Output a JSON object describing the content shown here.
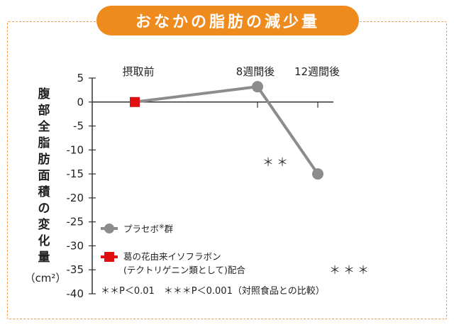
{
  "title": "おなかの脂肪の減少量",
  "chart_data": {
    "type": "line",
    "categories": [
      "摂取前",
      "8週間後",
      "12週間後"
    ],
    "ylabel": "腹部全脂肪面積の変化量",
    "ylabel_unit": "（cm²）",
    "ylim": [
      -40,
      5
    ],
    "yticks": [
      5,
      0,
      -5,
      -10,
      -15,
      -20,
      -25,
      -30,
      -35,
      -40
    ],
    "grid": false,
    "legend_position": "bottom-left",
    "series": [
      {
        "name": "プラセボ群",
        "name_superscript": "※",
        "color": "#8c8c8c",
        "values": [
          null,
          3.2,
          -15
        ]
      },
      {
        "name": "葛の花由来イソフラボン",
        "name_line2": "(テクトリゲニン類として)配合",
        "color": "#e01010",
        "values": [
          0,
          null,
          null
        ]
      }
    ],
    "annotations": [
      {
        "text": "＊＊",
        "near": "8週間後"
      },
      {
        "text": "＊＊＊",
        "near": "12週間後"
      }
    ],
    "footnote": "＊＊P＜0.01　＊＊＊P＜0.001（対照食品との比較）"
  }
}
